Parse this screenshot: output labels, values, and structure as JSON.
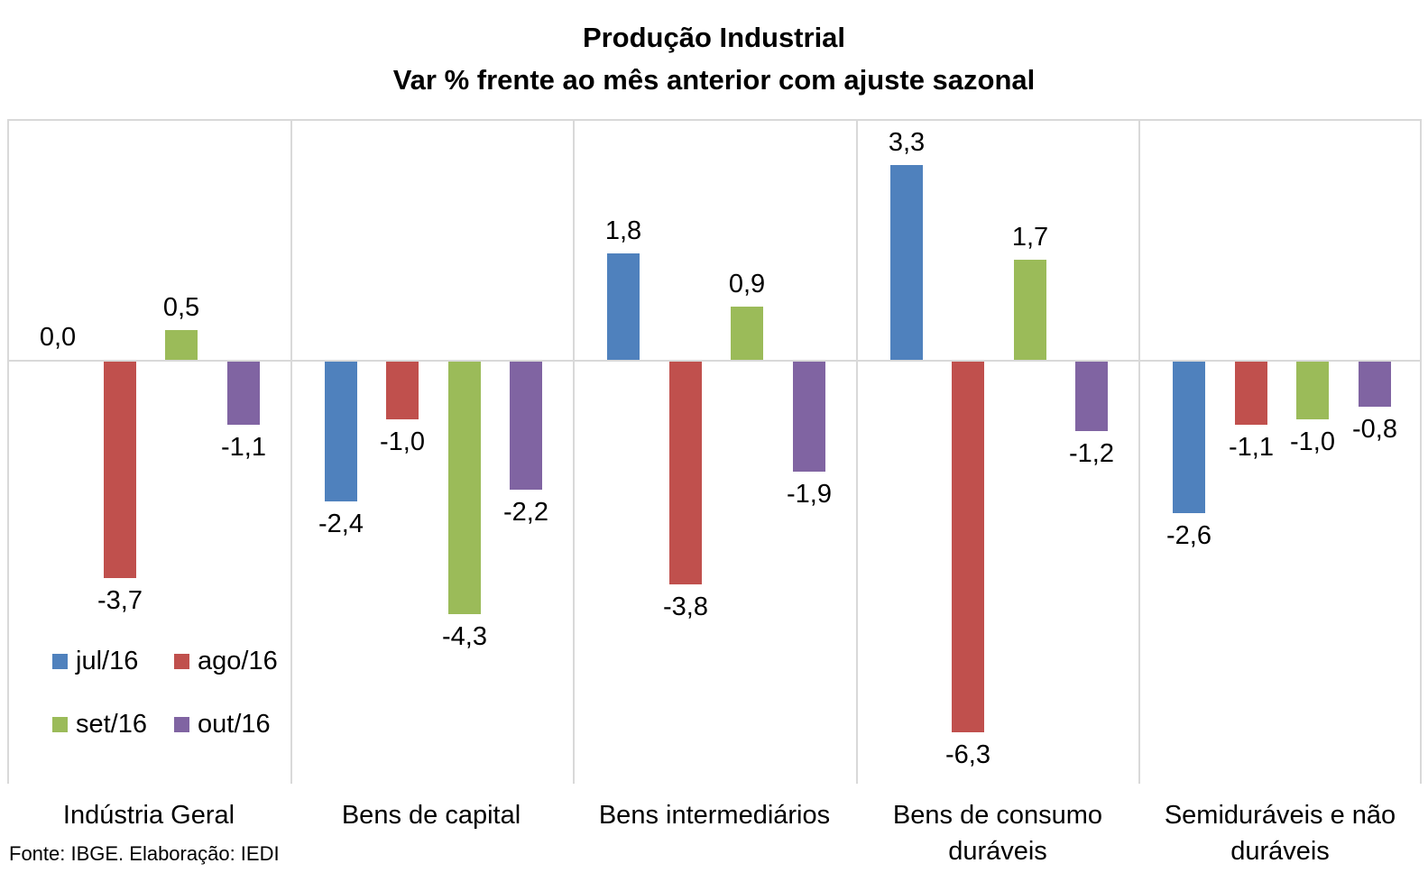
{
  "title": {
    "line1": "Produção Industrial",
    "line2": "Var % frente ao mês anterior com ajuste sazonal"
  },
  "footer": {
    "source_note": "Fonte: IBGE. Elaboração: IEDI"
  },
  "colors": {
    "series_blue": "#4F81BD",
    "series_red": "#C0504D",
    "series_green": "#9BBB59",
    "series_purple": "#8064A2",
    "axis_and_grid": "#D9D9D9",
    "text": "#000000"
  },
  "chart_data": {
    "type": "bar",
    "title": "Produção Industrial",
    "subtitle": "Var % frente ao mês anterior com ajuste sazonal",
    "categories": [
      "Indústria Geral",
      "Bens de capital",
      "Bens intermediários",
      "Bens de consumo duráveis",
      "Semiduráveis e não duráveis"
    ],
    "category_label_lines": [
      [
        "Indústria Geral"
      ],
      [
        "Bens de capital"
      ],
      [
        "Bens intermediários"
      ],
      [
        "Bens de consumo",
        "duráveis"
      ],
      [
        "Semiduráveis e não",
        "duráveis"
      ]
    ],
    "series": [
      {
        "name": "jul/16",
        "color": "#4F81BD",
        "values": [
          0.0,
          -2.4,
          1.8,
          3.3,
          -2.6
        ],
        "labels": [
          "0,0",
          "-2,4",
          "1,8",
          "3,3",
          "-2,6"
        ]
      },
      {
        "name": "ago/16",
        "color": "#C0504D",
        "values": [
          -3.7,
          -1.0,
          -3.8,
          -6.3,
          -1.1
        ],
        "labels": [
          "-3,7",
          "-1,0",
          "-3,8",
          "-6,3",
          "-1,1"
        ]
      },
      {
        "name": "set/16",
        "color": "#9BBB59",
        "values": [
          0.5,
          -4.3,
          0.9,
          1.7,
          -1.0
        ],
        "labels": [
          "0,5",
          "-4,3",
          "0,9",
          "1,7",
          "-1,0"
        ]
      },
      {
        "name": "out/16",
        "color": "#8064A2",
        "values": [
          -1.1,
          -2.2,
          -1.9,
          -1.2,
          -0.8
        ],
        "labels": [
          "-1,1",
          "-2,2",
          "-1,9",
          "-1,2",
          "-0,8"
        ]
      }
    ],
    "ylim": [
      -7.2,
      4.1
    ],
    "grid": "vertical category separators and zero axis line, light gray",
    "legend_position": "inside-bottom-left",
    "data_labels": "outside-end, comma decimal separator"
  }
}
